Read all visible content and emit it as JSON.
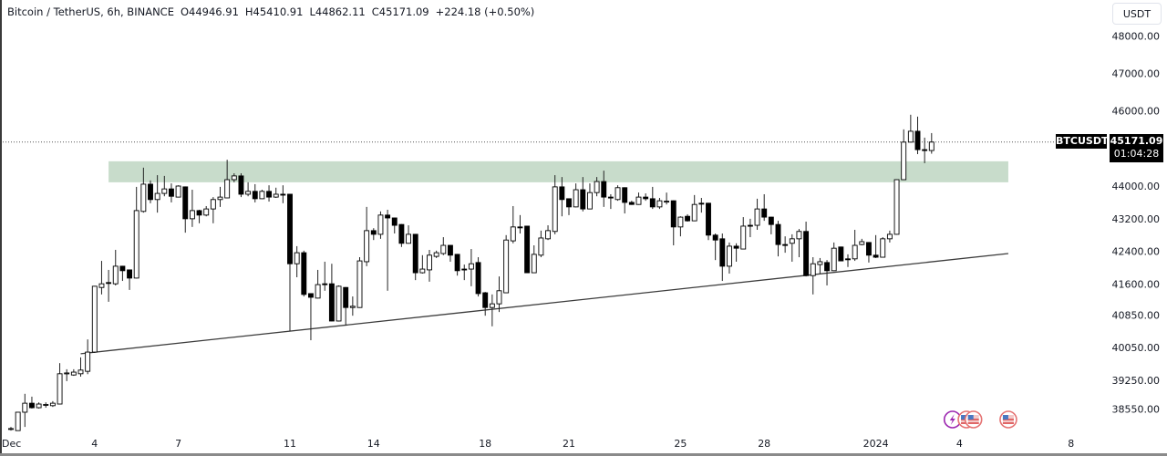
{
  "header": {
    "symbol": "Bitcoin / TetherUS, 6h, BINANCE",
    "open": "O44946.91",
    "high": "H45410.91",
    "low": "L44862.11",
    "close": "C45171.09",
    "change": "+224.18 (+0.50%)"
  },
  "price_axis": {
    "unit_button": "USDT",
    "symbol_tag": "BTCUSDT",
    "last_price": "45171.09",
    "countdown": "01:04:28"
  },
  "colors": {
    "up_body": "#ffffff",
    "down_body": "#000000",
    "candle_border": "#000000",
    "zone_fill": "#c8dccb",
    "trendline": "#3c3c3c",
    "price_line": "#555555",
    "event_purple": "#9c27b0",
    "event_red": "#e57373"
  },
  "chart_data": {
    "type": "candlestick",
    "interval": "6h",
    "start_time": "2023-12-01 00:00",
    "ohlc_order": [
      "open",
      "high",
      "low",
      "close"
    ],
    "y_ticks": [
      48000,
      47000,
      46000,
      44000,
      43200,
      42400,
      41600,
      40850,
      40050,
      39250,
      38550
    ],
    "y_tick_labels": [
      "48000.00",
      "47000.00",
      "46000.00",
      "44000.00",
      "43200.00",
      "42400.00",
      "41600.00",
      "40850.00",
      "40050.00",
      "39250.00",
      "38550.00"
    ],
    "x_ticks": [
      {
        "label": "Dec",
        "date": "2023-12-01"
      },
      {
        "label": "4",
        "date": "2023-12-04"
      },
      {
        "label": "7",
        "date": "2023-12-07"
      },
      {
        "label": "11",
        "date": "2023-12-11"
      },
      {
        "label": "14",
        "date": "2023-12-14"
      },
      {
        "label": "18",
        "date": "2023-12-18"
      },
      {
        "label": "21",
        "date": "2023-12-21"
      },
      {
        "label": "25",
        "date": "2023-12-25"
      },
      {
        "label": "28",
        "date": "2023-12-28"
      },
      {
        "label": "2024",
        "date": "2024-01-01"
      },
      {
        "label": "4",
        "date": "2024-01-04"
      },
      {
        "label": "8",
        "date": "2024-01-08"
      }
    ],
    "candles": [
      [
        38070,
        38110,
        38020,
        38070
      ],
      [
        38020,
        38470,
        38020,
        38470
      ],
      [
        38470,
        38920,
        38110,
        38690
      ],
      [
        38690,
        38850,
        38560,
        38580
      ],
      [
        38580,
        38710,
        38560,
        38670
      ],
      [
        38650,
        38710,
        38580,
        38660
      ],
      [
        38630,
        38740,
        38600,
        38690
      ],
      [
        38670,
        39670,
        38660,
        39410
      ],
      [
        39410,
        39520,
        39230,
        39430
      ],
      [
        39380,
        39520,
        39360,
        39450
      ],
      [
        39410,
        39810,
        39340,
        39500
      ],
      [
        39470,
        40250,
        39400,
        39940
      ],
      [
        39940,
        41560,
        39920,
        41550
      ],
      [
        41520,
        42170,
        41350,
        41610
      ],
      [
        41640,
        41950,
        41170,
        41630
      ],
      [
        41610,
        42440,
        41570,
        42040
      ],
      [
        42040,
        42050,
        41680,
        41930
      ],
      [
        41950,
        41960,
        41460,
        41750
      ],
      [
        41750,
        43980,
        41740,
        43400
      ],
      [
        43380,
        44490,
        43350,
        44050
      ],
      [
        44050,
        44150,
        43580,
        43670
      ],
      [
        43670,
        44290,
        43350,
        43820
      ],
      [
        43820,
        44270,
        43750,
        43930
      ],
      [
        43930,
        44070,
        43600,
        43750
      ],
      [
        43730,
        44020,
        43720,
        44000
      ],
      [
        43980,
        43990,
        42860,
        43200
      ],
      [
        43200,
        43910,
        43000,
        43400
      ],
      [
        43400,
        43420,
        43090,
        43290
      ],
      [
        43290,
        43510,
        43260,
        43440
      ],
      [
        43440,
        43730,
        43090,
        43670
      ],
      [
        43670,
        43980,
        43490,
        43730
      ],
      [
        43710,
        44700,
        43700,
        44170
      ],
      [
        44170,
        44340,
        44100,
        44270
      ],
      [
        44270,
        44340,
        43730,
        43800
      ],
      [
        43800,
        44100,
        43750,
        43870
      ],
      [
        43870,
        44050,
        43600,
        43690
      ],
      [
        43690,
        43910,
        43680,
        43870
      ],
      [
        43870,
        44020,
        43620,
        43730
      ],
      [
        43730,
        43960,
        43710,
        43800
      ],
      [
        43800,
        44020,
        43580,
        43790
      ],
      [
        43800,
        43810,
        40450,
        42100
      ],
      [
        42100,
        42530,
        41770,
        42370
      ],
      [
        42370,
        42420,
        41300,
        41350
      ],
      [
        41370,
        41380,
        40230,
        41280
      ],
      [
        41260,
        41950,
        41250,
        41590
      ],
      [
        41610,
        42150,
        41440,
        41600
      ],
      [
        41610,
        42100,
        40690,
        40700
      ],
      [
        40700,
        41570,
        40690,
        41550
      ],
      [
        41520,
        41530,
        40590,
        41030
      ],
      [
        41030,
        41300,
        40830,
        41060
      ],
      [
        41030,
        42260,
        41020,
        42170
      ],
      [
        42150,
        43490,
        42040,
        42910
      ],
      [
        42910,
        42970,
        42680,
        42820
      ],
      [
        42820,
        43380,
        42710,
        43290
      ],
      [
        43290,
        43420,
        41440,
        43220
      ],
      [
        43220,
        43230,
        42840,
        43040
      ],
      [
        43060,
        43070,
        42510,
        42600
      ],
      [
        42600,
        43040,
        42590,
        42820
      ],
      [
        42820,
        42830,
        41700,
        41880
      ],
      [
        41880,
        42310,
        41860,
        41970
      ],
      [
        41950,
        42440,
        41660,
        42310
      ],
      [
        42280,
        42420,
        42240,
        42370
      ],
      [
        42350,
        42750,
        42310,
        42550
      ],
      [
        42550,
        42560,
        42150,
        42310
      ],
      [
        42330,
        42340,
        41810,
        41930
      ],
      [
        41970,
        42080,
        41700,
        41950
      ],
      [
        41970,
        42460,
        41550,
        42100
      ],
      [
        42130,
        42260,
        41300,
        41370
      ],
      [
        41390,
        41410,
        40830,
        41030
      ],
      [
        41030,
        41350,
        40570,
        41120
      ],
      [
        41120,
        41790,
        40920,
        41440
      ],
      [
        41390,
        42800,
        41380,
        42680
      ],
      [
        42660,
        43510,
        42600,
        43000
      ],
      [
        43000,
        43290,
        42840,
        42990
      ],
      [
        43020,
        43030,
        41870,
        41880
      ],
      [
        41880,
        42550,
        41870,
        42330
      ],
      [
        42310,
        42910,
        42260,
        42730
      ],
      [
        42710,
        43040,
        42680,
        42910
      ],
      [
        42890,
        44290,
        42820,
        43980
      ],
      [
        43980,
        44240,
        43260,
        43670
      ],
      [
        43690,
        43700,
        43290,
        43490
      ],
      [
        43490,
        44070,
        43480,
        43910
      ],
      [
        43910,
        44240,
        43380,
        43440
      ],
      [
        43440,
        44070,
        43430,
        43840
      ],
      [
        43840,
        44240,
        43750,
        44120
      ],
      [
        44120,
        44410,
        43490,
        43730
      ],
      [
        43730,
        43800,
        43440,
        43710
      ],
      [
        43670,
        44020,
        43640,
        43960
      ],
      [
        43960,
        43970,
        43330,
        43600
      ],
      [
        43600,
        43640,
        43540,
        43550
      ],
      [
        43550,
        43840,
        43540,
        43730
      ],
      [
        43730,
        43820,
        43640,
        43690
      ],
      [
        43690,
        43980,
        43440,
        43490
      ],
      [
        43490,
        43710,
        43440,
        43640
      ],
      [
        43620,
        43840,
        43550,
        43630
      ],
      [
        43640,
        43650,
        42550,
        43000
      ],
      [
        43000,
        43260,
        42770,
        43240
      ],
      [
        43260,
        43310,
        43130,
        43150
      ],
      [
        43150,
        43780,
        43140,
        43550
      ],
      [
        43580,
        43710,
        43350,
        43570
      ],
      [
        43580,
        43590,
        42680,
        42800
      ],
      [
        42800,
        42840,
        42190,
        42680
      ],
      [
        42710,
        42840,
        41680,
        42040
      ],
      [
        42040,
        42620,
        41860,
        42530
      ],
      [
        42530,
        42600,
        42150,
        42480
      ],
      [
        42460,
        43240,
        42450,
        43020
      ],
      [
        43040,
        43200,
        42750,
        43030
      ],
      [
        43040,
        43690,
        42930,
        43440
      ],
      [
        43440,
        43800,
        43150,
        43240
      ],
      [
        43240,
        43250,
        42820,
        43060
      ],
      [
        43060,
        43150,
        42280,
        42570
      ],
      [
        42570,
        42770,
        42370,
        42560
      ],
      [
        42600,
        42820,
        42150,
        42710
      ],
      [
        42710,
        42950,
        42260,
        42890
      ],
      [
        42890,
        43130,
        41790,
        41810
      ],
      [
        41810,
        42260,
        41350,
        42100
      ],
      [
        42080,
        42240,
        41860,
        42150
      ],
      [
        42130,
        42190,
        41570,
        41930
      ],
      [
        41930,
        42620,
        41920,
        42480
      ],
      [
        42510,
        42520,
        42160,
        42170
      ],
      [
        42220,
        42330,
        42020,
        42210
      ],
      [
        42220,
        42930,
        42170,
        42550
      ],
      [
        42570,
        42710,
        42550,
        42640
      ],
      [
        42620,
        42630,
        42130,
        42310
      ],
      [
        42310,
        42800,
        42240,
        42260
      ],
      [
        42260,
        42750,
        42250,
        42710
      ],
      [
        42710,
        42910,
        42620,
        42820
      ],
      [
        42820,
        44180,
        42810,
        44170
      ],
      [
        44170,
        45510,
        44160,
        45170
      ],
      [
        45170,
        45900,
        45160,
        45460
      ],
      [
        45460,
        45850,
        44850,
        44970
      ],
      [
        44970,
        45290,
        44610,
        44960
      ],
      [
        44946.91,
        45410.91,
        44862.11,
        45171.09
      ]
    ],
    "drawings": {
      "zone": {
        "from": "2023-12-04 12:00",
        "to": "2024-01-05 18:00",
        "top": 44660,
        "bottom": 44100
      },
      "trendline": [
        {
          "time": "2023-12-03 12:00",
          "price": 39900
        },
        {
          "time": "2024-01-05 18:00",
          "price": 42350
        }
      ]
    },
    "events": [
      {
        "icon": "lightning-icon",
        "time": "2024-01-03 18:00"
      },
      {
        "icon": "us-flag-icon",
        "time": "2024-01-04 06:00"
      },
      {
        "icon": "us-flag-icon",
        "time": "2024-01-04 12:00"
      },
      {
        "icon": "us-flag-icon",
        "time": "2024-01-05 18:00"
      }
    ],
    "last_price": 45171.09
  }
}
